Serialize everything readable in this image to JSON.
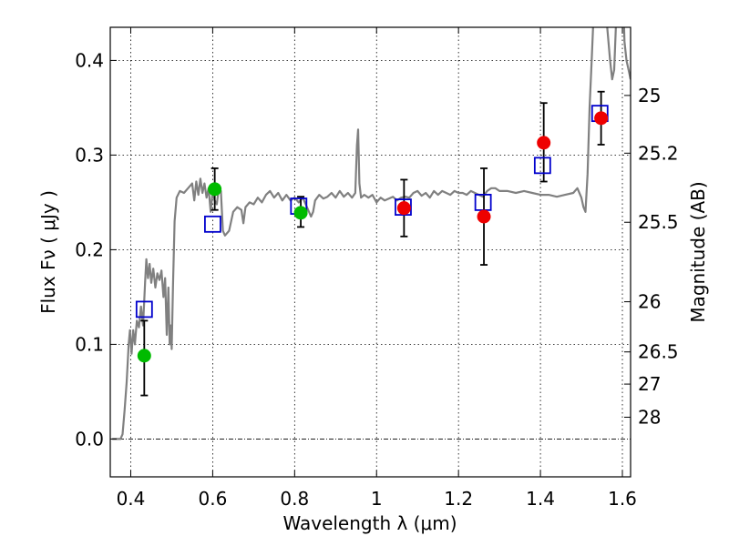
{
  "chart_data": {
    "type": "scatter",
    "xlabel": "Wavelength  λ (μm)",
    "ylabel": "Flux  Fν  ( μJy )",
    "ylabel_right": "Magnitude (AB)",
    "xlim": [
      0.35,
      1.62
    ],
    "ylim": [
      -0.04,
      0.435
    ],
    "x_ticks": [
      0.4,
      0.6,
      0.8,
      1.0,
      1.2,
      1.4,
      1.6
    ],
    "x_tick_labels": [
      "0.4",
      "0.6",
      "0.8",
      "1",
      "1.2",
      "1.4",
      "1.6"
    ],
    "y_ticks": [
      0.0,
      0.1,
      0.2,
      0.3,
      0.4
    ],
    "y_tick_labels": [
      "0.0",
      "0.1",
      "0.2",
      "0.3",
      "0.4"
    ],
    "right_ticks": [
      {
        "label": "25",
        "flux": 0.363
      },
      {
        "label": "25.2",
        "flux": 0.302
      },
      {
        "label": "25.5",
        "flux": 0.229
      },
      {
        "label": "26",
        "flux": 0.145
      },
      {
        "label": "26.5",
        "flux": 0.092
      },
      {
        "label": "27",
        "flux": 0.058
      },
      {
        "label": "28",
        "flux": 0.023
      }
    ],
    "grid": true,
    "colors": {
      "model": "#808080",
      "model_points": "#0000cc",
      "green_points": "#00bb00",
      "red_points": "#ee0000",
      "errorbars": "#000000",
      "zero_line": "#000000"
    },
    "series": [
      {
        "name": "model spectrum",
        "style": "line",
        "points": [
          [
            0.355,
            0.0
          ],
          [
            0.375,
            0.0
          ],
          [
            0.38,
            0.005
          ],
          [
            0.385,
            0.03
          ],
          [
            0.39,
            0.06
          ],
          [
            0.395,
            0.1
          ],
          [
            0.398,
            0.115
          ],
          [
            0.402,
            0.09
          ],
          [
            0.406,
            0.115
          ],
          [
            0.41,
            0.1
          ],
          [
            0.415,
            0.125
          ],
          [
            0.42,
            0.118
          ],
          [
            0.425,
            0.14
          ],
          [
            0.43,
            0.12
          ],
          [
            0.435,
            0.165
          ],
          [
            0.438,
            0.19
          ],
          [
            0.442,
            0.17
          ],
          [
            0.446,
            0.185
          ],
          [
            0.45,
            0.165
          ],
          [
            0.455,
            0.18
          ],
          [
            0.46,
            0.16
          ],
          [
            0.465,
            0.175
          ],
          [
            0.47,
            0.168
          ],
          [
            0.475,
            0.178
          ],
          [
            0.48,
            0.15
          ],
          [
            0.484,
            0.17
          ],
          [
            0.488,
            0.11
          ],
          [
            0.492,
            0.16
          ],
          [
            0.495,
            0.1
          ],
          [
            0.498,
            0.12
          ],
          [
            0.5,
            0.095
          ],
          [
            0.503,
            0.16
          ],
          [
            0.507,
            0.23
          ],
          [
            0.512,
            0.255
          ],
          [
            0.52,
            0.262
          ],
          [
            0.53,
            0.26
          ],
          [
            0.54,
            0.265
          ],
          [
            0.55,
            0.27
          ],
          [
            0.555,
            0.252
          ],
          [
            0.56,
            0.272
          ],
          [
            0.565,
            0.258
          ],
          [
            0.57,
            0.275
          ],
          [
            0.575,
            0.26
          ],
          [
            0.58,
            0.27
          ],
          [
            0.585,
            0.255
          ],
          [
            0.59,
            0.265
          ],
          [
            0.595,
            0.24
          ],
          [
            0.6,
            0.262
          ],
          [
            0.605,
            0.252
          ],
          [
            0.61,
            0.248
          ],
          [
            0.615,
            0.265
          ],
          [
            0.62,
            0.262
          ],
          [
            0.625,
            0.22
          ],
          [
            0.63,
            0.215
          ],
          [
            0.64,
            0.22
          ],
          [
            0.65,
            0.24
          ],
          [
            0.66,
            0.245
          ],
          [
            0.67,
            0.242
          ],
          [
            0.675,
            0.228
          ],
          [
            0.68,
            0.245
          ],
          [
            0.69,
            0.25
          ],
          [
            0.7,
            0.248
          ],
          [
            0.71,
            0.255
          ],
          [
            0.72,
            0.25
          ],
          [
            0.73,
            0.258
          ],
          [
            0.74,
            0.262
          ],
          [
            0.75,
            0.255
          ],
          [
            0.76,
            0.26
          ],
          [
            0.77,
            0.252
          ],
          [
            0.78,
            0.258
          ],
          [
            0.79,
            0.252
          ],
          [
            0.8,
            0.255
          ],
          [
            0.81,
            0.25
          ],
          [
            0.82,
            0.255
          ],
          [
            0.83,
            0.245
          ],
          [
            0.84,
            0.235
          ],
          [
            0.845,
            0.24
          ],
          [
            0.85,
            0.252
          ],
          [
            0.86,
            0.258
          ],
          [
            0.87,
            0.254
          ],
          [
            0.88,
            0.256
          ],
          [
            0.89,
            0.26
          ],
          [
            0.9,
            0.255
          ],
          [
            0.91,
            0.262
          ],
          [
            0.92,
            0.256
          ],
          [
            0.93,
            0.26
          ],
          [
            0.94,
            0.255
          ],
          [
            0.948,
            0.26
          ],
          [
            0.952,
            0.31
          ],
          [
            0.955,
            0.327
          ],
          [
            0.958,
            0.27
          ],
          [
            0.962,
            0.255
          ],
          [
            0.97,
            0.258
          ],
          [
            0.98,
            0.255
          ],
          [
            0.99,
            0.258
          ],
          [
            1.0,
            0.25
          ],
          [
            1.01,
            0.255
          ],
          [
            1.02,
            0.252
          ],
          [
            1.03,
            0.254
          ],
          [
            1.04,
            0.256
          ],
          [
            1.05,
            0.252
          ],
          [
            1.06,
            0.255
          ],
          [
            1.07,
            0.256
          ],
          [
            1.08,
            0.255
          ],
          [
            1.09,
            0.26
          ],
          [
            1.1,
            0.262
          ],
          [
            1.11,
            0.257
          ],
          [
            1.12,
            0.26
          ],
          [
            1.13,
            0.255
          ],
          [
            1.14,
            0.262
          ],
          [
            1.15,
            0.258
          ],
          [
            1.16,
            0.262
          ],
          [
            1.17,
            0.26
          ],
          [
            1.18,
            0.258
          ],
          [
            1.19,
            0.262
          ],
          [
            1.2,
            0.26
          ],
          [
            1.21,
            0.26
          ],
          [
            1.22,
            0.258
          ],
          [
            1.23,
            0.262
          ],
          [
            1.24,
            0.26
          ],
          [
            1.25,
            0.258
          ],
          [
            1.26,
            0.256
          ],
          [
            1.27,
            0.262
          ],
          [
            1.28,
            0.265
          ],
          [
            1.29,
            0.265
          ],
          [
            1.3,
            0.262
          ],
          [
            1.32,
            0.262
          ],
          [
            1.34,
            0.26
          ],
          [
            1.36,
            0.262
          ],
          [
            1.38,
            0.26
          ],
          [
            1.4,
            0.258
          ],
          [
            1.42,
            0.258
          ],
          [
            1.44,
            0.256
          ],
          [
            1.46,
            0.258
          ],
          [
            1.48,
            0.26
          ],
          [
            1.49,
            0.265
          ],
          [
            1.5,
            0.255
          ],
          [
            1.505,
            0.245
          ],
          [
            1.51,
            0.24
          ],
          [
            1.515,
            0.28
          ],
          [
            1.52,
            0.35
          ],
          [
            1.525,
            0.4
          ],
          [
            1.53,
            0.45
          ],
          [
            1.535,
            0.5
          ],
          [
            1.54,
            0.5
          ],
          [
            1.55,
            0.5
          ],
          [
            1.56,
            0.45
          ],
          [
            1.57,
            0.4
          ],
          [
            1.575,
            0.38
          ],
          [
            1.58,
            0.39
          ],
          [
            1.59,
            0.5
          ],
          [
            1.6,
            0.5
          ],
          [
            1.605,
            0.42
          ],
          [
            1.61,
            0.4
          ],
          [
            1.615,
            0.39
          ],
          [
            1.62,
            0.38
          ]
        ]
      },
      {
        "name": "model band fluxes",
        "style": "open-square",
        "points": [
          [
            0.433,
            0.137
          ],
          [
            0.6,
            0.227
          ],
          [
            0.81,
            0.246
          ],
          [
            1.065,
            0.245
          ],
          [
            1.26,
            0.25
          ],
          [
            1.405,
            0.289
          ],
          [
            1.545,
            0.344
          ]
        ]
      },
      {
        "name": "observed (green)",
        "style": "filled-circle",
        "points": [
          {
            "x": 0.433,
            "y": 0.088,
            "lo": 0.046,
            "hi": 0.125
          },
          {
            "x": 0.605,
            "y": 0.264,
            "lo": 0.242,
            "hi": 0.286
          },
          {
            "x": 0.815,
            "y": 0.239,
            "lo": 0.224,
            "hi": 0.256
          }
        ]
      },
      {
        "name": "observed (red)",
        "style": "filled-circle",
        "points": [
          {
            "x": 1.067,
            "y": 0.244,
            "lo": 0.214,
            "hi": 0.274
          },
          {
            "x": 1.262,
            "y": 0.235,
            "lo": 0.184,
            "hi": 0.286
          },
          {
            "x": 1.408,
            "y": 0.313,
            "lo": 0.272,
            "hi": 0.355
          },
          {
            "x": 1.548,
            "y": 0.339,
            "lo": 0.311,
            "hi": 0.367
          }
        ]
      }
    ]
  }
}
